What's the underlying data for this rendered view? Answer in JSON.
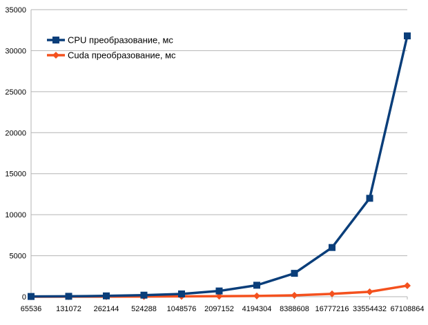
{
  "chart_data": {
    "type": "line",
    "categories": [
      "65536",
      "131072",
      "262144",
      "524288",
      "1048576",
      "2097152",
      "4194304",
      "8388608",
      "16777216",
      "33554432",
      "67108864"
    ],
    "ylim": [
      0,
      35000
    ],
    "y_ticks": [
      "0",
      "5000",
      "10000",
      "15000",
      "20000",
      "25000",
      "30000",
      "35000"
    ],
    "grid": "horizontal",
    "legend_position": "top-left",
    "series": [
      {
        "name": "CPU преобразование, мс",
        "color": "#0a3e7a",
        "marker": "square",
        "values": [
          30,
          50,
          100,
          190,
          340,
          700,
          1400,
          2850,
          6000,
          12000,
          31800
        ]
      },
      {
        "name": "Cuda преобразование, мс",
        "color": "#f4511e",
        "marker": "diamond",
        "values": [
          5,
          10,
          15,
          25,
          40,
          60,
          90,
          170,
          350,
          600,
          1350
        ]
      }
    ]
  }
}
